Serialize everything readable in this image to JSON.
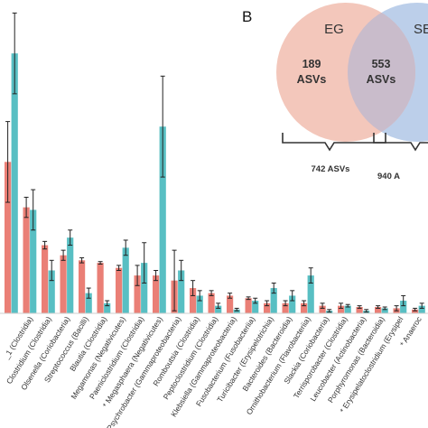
{
  "chart_data": [
    {
      "type": "bar",
      "categories": [
        "",
        "_1 (Clostridia)",
        "Clostridium (Clostridia)",
        "Olsenella (Coriobacteria)",
        "Streptococcus (Bacilli)",
        "Blautia (Clostridia)",
        "Megamonas (Negativicutes)",
        "Paeniclostridium (Clostridia)",
        "* Megasphaera (Negativicutes)",
        "Psychrobacter (Gammaproteobacteria)",
        "Romboutsia (Clostridia)",
        "Peptoclostridium (Clostridia)",
        "Klebsiella (Gammaproteobacteria)",
        "Fusobacterium (Fusobacteriia)",
        "Turicibacter (Erysipelotrichia)",
        "Bacteroides (Bacteroidia)",
        "Ornithobacterium (Flavobacteriia)",
        "Slackia (Coriobacteria)",
        "Terrisporobacter (Clostridia)",
        "Leucobacter (Actinobacteria)",
        "Porphyromonas (Bacteroidia)",
        "* Erysipelatoclostridium (Erysipel",
        "* Anaeroc"
      ],
      "series": [
        {
          "color": "#ea7f76",
          "values": [
            60,
            42,
            27,
            23,
            21,
            20,
            18,
            15,
            15,
            13,
            10,
            8,
            7,
            6,
            4,
            4,
            4,
            3,
            3,
            2.5,
            2.5,
            2,
            1.5
          ],
          "errors": [
            16,
            4,
            1.5,
            2,
            1,
            0.5,
            1,
            4,
            2,
            12,
            3,
            1,
            1,
            0.5,
            1,
            1,
            1,
            1,
            1,
            0.5,
            0.5,
            1,
            0.5
          ]
        },
        {
          "color": "#58bfc3",
          "values": [
            103,
            41,
            17,
            30,
            8,
            4,
            26,
            20,
            74,
            17,
            7,
            3,
            1.5,
            5,
            10,
            7,
            15,
            1,
            3,
            1,
            2,
            5,
            3
          ],
          "errors": [
            16,
            8,
            4,
            3,
            2,
            1,
            3,
            8,
            20,
            4,
            2,
            1,
            0.5,
            1,
            2,
            2,
            3,
            0.5,
            0.5,
            0.5,
            0.5,
            2,
            1
          ]
        }
      ],
      "ylim": [
        0,
        112
      ],
      "grid": false
    },
    {
      "type": "venn",
      "panel_label": "B",
      "sets": [
        {
          "label": "EG",
          "color": "#f0b7a8"
        },
        {
          "label": "SE",
          "color": "#a9c2e4"
        }
      ],
      "regions": [
        {
          "line1": "189",
          "line2": "ASVs"
        },
        {
          "line1": "553",
          "line2": "ASVs"
        }
      ],
      "totals": [
        "742 ASVs",
        "940 A"
      ]
    }
  ]
}
